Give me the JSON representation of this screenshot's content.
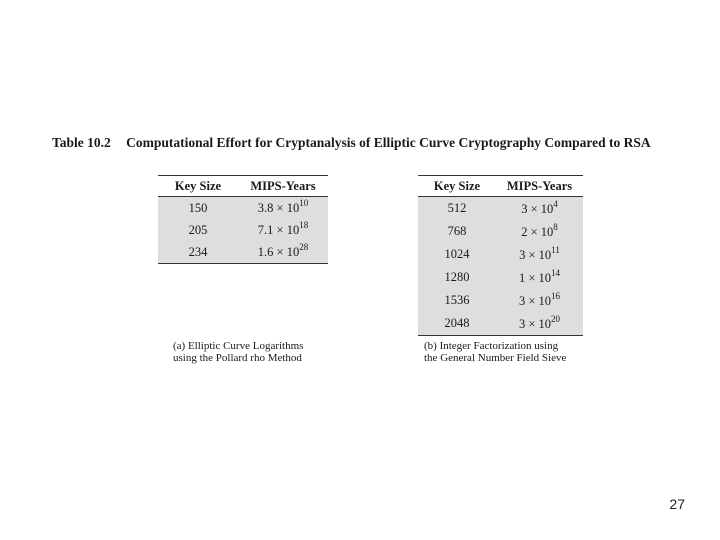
{
  "title": {
    "number": "Table 10.2",
    "text": "Computational Effort for Cryptanalysis of Elliptic Curve Cryptography Compared to RSA"
  },
  "table_a": {
    "headers": [
      "Key Size",
      "MIPS-Years"
    ],
    "rows": [
      {
        "key": "150",
        "base": "3.8 × 10",
        "exp": "10"
      },
      {
        "key": "205",
        "base": "7.1 × 10",
        "exp": "18"
      },
      {
        "key": "234",
        "base": "1.6 × 10",
        "exp": "28"
      }
    ],
    "caption_line1": "(a) Elliptic Curve Logarithms",
    "caption_line2": "using the Pollard rho Method"
  },
  "table_b": {
    "headers": [
      "Key Size",
      "MIPS-Years"
    ],
    "rows": [
      {
        "key": "512",
        "base": "3 × 10",
        "exp": "4"
      },
      {
        "key": "768",
        "base": "2 × 10",
        "exp": "8"
      },
      {
        "key": "1024",
        "base": "3 × 10",
        "exp": "11"
      },
      {
        "key": "1280",
        "base": "1 × 10",
        "exp": "14"
      },
      {
        "key": "1536",
        "base": "3 × 10",
        "exp": "16"
      },
      {
        "key": "2048",
        "base": "3 × 10",
        "exp": "20"
      }
    ],
    "caption_line1": "(b) Integer Factorization using",
    "caption_line2": "the General Number Field Sieve"
  },
  "page_number": "27"
}
